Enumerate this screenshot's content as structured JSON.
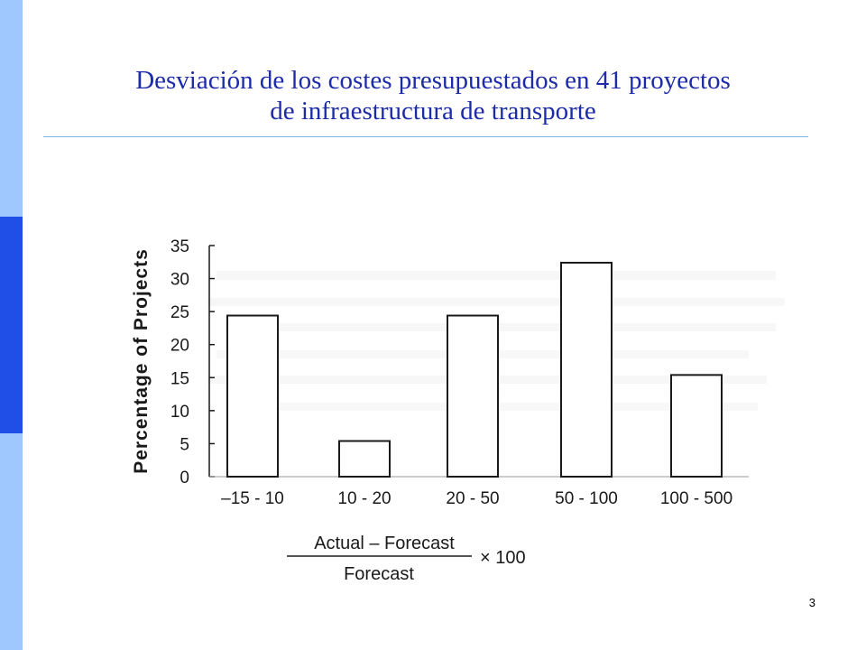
{
  "slide": {
    "title_line1": "Desviación de los costes presupuestados en 41 proyectos",
    "title_line2": "de infraestructura de transporte",
    "page_number": "3",
    "accent_color": "#1c2ba8",
    "sidebar_dark_color": "#1f4fe6",
    "sidebar_light_color": "#9ec8ff"
  },
  "chart_data": {
    "type": "bar",
    "categories": [
      "–15 - 10",
      "10 - 20",
      "20 - 50",
      "50 - 100",
      "100 - 500"
    ],
    "values": [
      24.4,
      5.4,
      24.4,
      32.4,
      15.4
    ],
    "ylabel": "Percentage of Projects",
    "xlabel_numerator": "Actual – Forecast",
    "xlabel_denominator": "Forecast",
    "xlabel_multiplier": "× 100",
    "ylim": [
      0,
      35
    ],
    "yticks": [
      0,
      5,
      10,
      15,
      20,
      25,
      30,
      35
    ],
    "grid": false,
    "legend": "none"
  }
}
